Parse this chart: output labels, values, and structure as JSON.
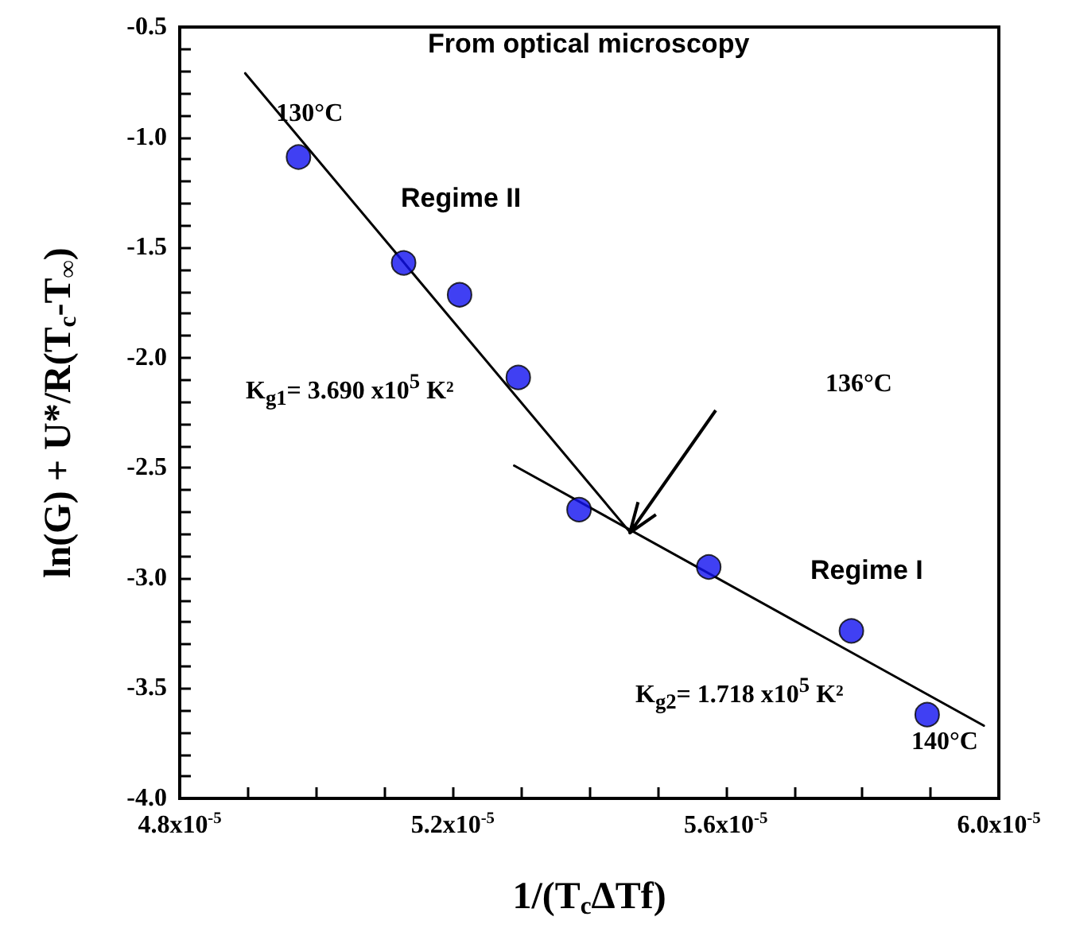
{
  "chart_data": {
    "type": "scatter",
    "xlabel": "1/(T$_{c}$ΔTf)",
    "ylabel": "ln(G) + U*/R(T$_{c}$-T$_{∞}$)",
    "series": [
      {
        "color": "#1010f0",
        "x": [
          4.974e-05,
          5.128e-05,
          5.21e-05,
          5.296e-05,
          5.385e-05,
          5.575e-05,
          5.784e-05,
          5.895e-05
        ],
        "values": [
          -1.09,
          -1.57,
          -1.715,
          -2.09,
          -2.69,
          -2.95,
          -3.24,
          -3.62
        ]
      },
      {
        "type": "line",
        "marker": "none",
        "color": "#000000",
        "x": [
          4.896e-05,
          5.459e-05
        ],
        "values": [
          -0.71,
          -2.79
        ]
      },
      {
        "type": "line",
        "marker": "none",
        "color": "#000000",
        "x": [
          5.29e-05,
          5.978e-05
        ],
        "values": [
          -2.49,
          -3.67
        ]
      }
    ],
    "xlim": [
      4.8e-05,
      6e-05
    ],
    "xticks": [
      {
        "value": 4.8e-05,
        "label": "4.8x10$^{-5}$"
      },
      {
        "value": 4.9e-05,
        "label": null
      },
      {
        "value": 5e-05,
        "label": null
      },
      {
        "value": 5.1e-05,
        "label": null
      },
      {
        "value": 5.2e-05,
        "label": "5.2x10$^{-5}$"
      },
      {
        "value": 5.3e-05,
        "label": null
      },
      {
        "value": 5.4e-05,
        "label": null
      },
      {
        "value": 5.5e-05,
        "label": null
      },
      {
        "value": 5.6e-05,
        "label": "5.6x10$^{-5}$"
      },
      {
        "value": 5.7e-05,
        "label": null
      },
      {
        "value": 5.8e-05,
        "label": null
      },
      {
        "value": 5.9e-05,
        "label": null
      },
      {
        "value": 6e-05,
        "label": "6.0x10$^{-5}$"
      }
    ],
    "ylim": [
      -4.0,
      -0.5
    ],
    "yticks": [
      {
        "value": -4.0,
        "label": "-4.0"
      },
      {
        "value": -3.9,
        "label": null
      },
      {
        "value": -3.8,
        "label": null
      },
      {
        "value": -3.7,
        "label": null
      },
      {
        "value": -3.6,
        "label": null
      },
      {
        "value": -3.5,
        "label": "-3.5"
      },
      {
        "value": -3.4,
        "label": null
      },
      {
        "value": -3.3,
        "label": null
      },
      {
        "value": -3.2,
        "label": null
      },
      {
        "value": -3.1,
        "label": null
      },
      {
        "value": -3.0,
        "label": "-3.0"
      },
      {
        "value": -2.9,
        "label": null
      },
      {
        "value": -2.8,
        "label": null
      },
      {
        "value": -2.7,
        "label": null
      },
      {
        "value": -2.6,
        "label": null
      },
      {
        "value": -2.5,
        "label": "-2.5"
      },
      {
        "value": -2.4,
        "label": null
      },
      {
        "value": -2.3,
        "label": null
      },
      {
        "value": -2.2,
        "label": null
      },
      {
        "value": -2.1,
        "label": null
      },
      {
        "value": -2.0,
        "label": "-2.0"
      },
      {
        "value": -1.9,
        "label": null
      },
      {
        "value": -1.8,
        "label": null
      },
      {
        "value": -1.7,
        "label": null
      },
      {
        "value": -1.6,
        "label": null
      },
      {
        "value": -1.5,
        "label": "-1.5"
      },
      {
        "value": -1.4,
        "label": null
      },
      {
        "value": -1.3,
        "label": null
      },
      {
        "value": -1.2,
        "label": null
      },
      {
        "value": -1.1,
        "label": null
      },
      {
        "value": -1.0,
        "label": "-1.0"
      },
      {
        "value": -0.9,
        "label": null
      },
      {
        "value": -0.8,
        "label": null
      },
      {
        "value": -0.7,
        "label": null
      },
      {
        "value": -0.6,
        "label": null
      },
      {
        "value": -0.5,
        "label": "-0.5"
      }
    ],
    "grid": false,
    "marker": "circle",
    "line_style": "solid",
    "annotations": [
      "From optical microscopy",
      {
        "text": "130°C",
        "x": 4.974e-05,
        "y": -1.09
      },
      "Regime II",
      "K$_{g1}$= 3.690 x10$^{5}$ K²",
      "136°C",
      "Regime I",
      "K$_{g2}$= 1.718 x10$^{5}$ K²",
      {
        "text": "140°C",
        "x": 5.895e-05,
        "y": -3.62
      }
    ]
  }
}
